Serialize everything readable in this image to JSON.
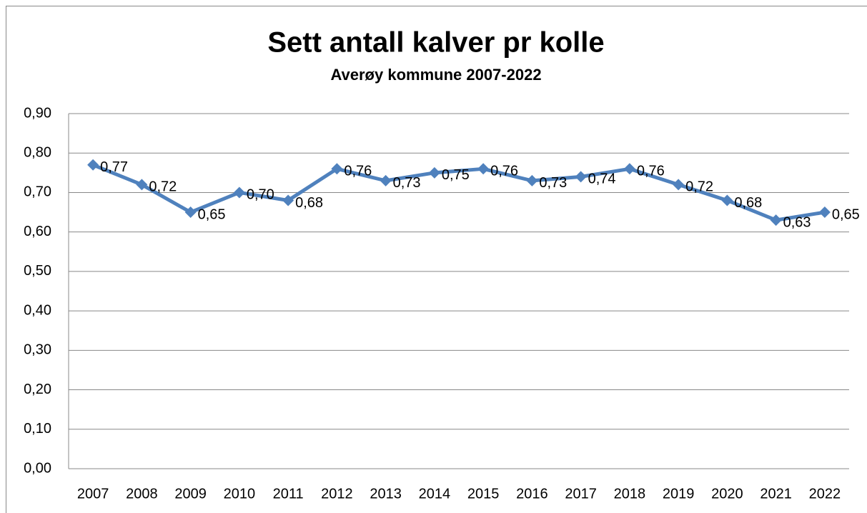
{
  "chart_data": {
    "type": "line",
    "title": "Sett antall kalver pr kolle",
    "subtitle": "Averøy kommune 2007-2022",
    "categories": [
      "2007",
      "2008",
      "2009",
      "2010",
      "2011",
      "2012",
      "2013",
      "2014",
      "2015",
      "2016",
      "2017",
      "2018",
      "2019",
      "2020",
      "2021",
      "2022"
    ],
    "series": [
      {
        "name": "Sett antall kalver pr kolle",
        "color": "#4f81bd",
        "values": [
          0.77,
          0.72,
          0.65,
          0.7,
          0.68,
          0.76,
          0.73,
          0.75,
          0.76,
          0.73,
          0.74,
          0.76,
          0.72,
          0.68,
          0.63,
          0.65
        ],
        "value_labels": [
          "0,77",
          "0,72",
          "0,65",
          "0,70",
          "0,68",
          "0,76",
          "0,73",
          "0,75",
          "0,76",
          "0,73",
          "0,74",
          "0,76",
          "0,72",
          "0,68",
          "0,63",
          "0,65"
        ]
      }
    ],
    "ylim": [
      0,
      0.9
    ],
    "yticks": [
      {
        "value": 0,
        "label": "0,00"
      },
      {
        "value": 0.1,
        "label": "0,10"
      },
      {
        "value": 0.2,
        "label": "0,20"
      },
      {
        "value": 0.3,
        "label": "0,30"
      },
      {
        "value": 0.4,
        "label": "0,40"
      },
      {
        "value": 0.5,
        "label": "0,50"
      },
      {
        "value": 0.6,
        "label": "0,60"
      },
      {
        "value": 0.7,
        "label": "0,70"
      },
      {
        "value": 0.8,
        "label": "0,80"
      },
      {
        "value": 0.9,
        "label": "0,90"
      }
    ],
    "grid": true
  }
}
